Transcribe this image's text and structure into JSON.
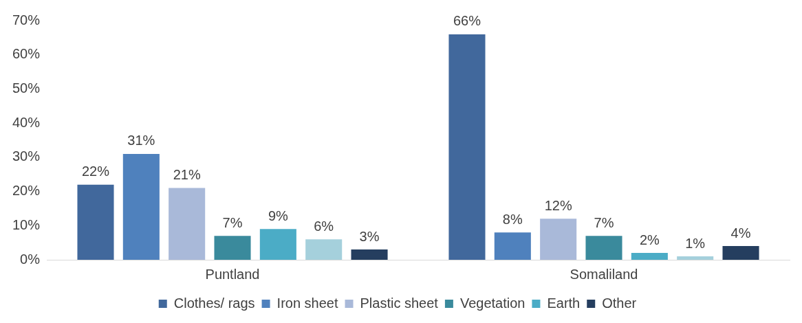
{
  "chart_data": {
    "type": "bar",
    "categories": [
      "Puntland",
      "Somaliland"
    ],
    "series": [
      {
        "name": "Clothes/ rags",
        "color": "#41689c",
        "values": [
          22,
          66
        ],
        "value_labels": [
          "22%",
          "66%"
        ]
      },
      {
        "name": "Iron sheet",
        "color": "#4f81bd",
        "values": [
          31,
          8
        ],
        "value_labels": [
          "31%",
          "8%"
        ]
      },
      {
        "name": "Plastic sheet",
        "color": "#a9b9d9",
        "values": [
          21,
          12
        ],
        "value_labels": [
          "21%",
          "12%"
        ]
      },
      {
        "name": "Vegetation",
        "color": "#3a8a9c",
        "values": [
          7,
          7
        ],
        "value_labels": [
          "7%",
          "7%"
        ]
      },
      {
        "name": "Earth",
        "color": "#4bacc6",
        "values": [
          9,
          2
        ],
        "value_labels": [
          "9%",
          "2%"
        ]
      },
      {
        "color": "#a5d0dc",
        "values": [
          6,
          1
        ],
        "value_labels": [
          "6%",
          "1%"
        ]
      },
      {
        "name": "Other",
        "color": "#253e5f",
        "values": [
          3,
          4
        ],
        "value_labels": [
          "3%",
          "4%"
        ]
      }
    ],
    "ylim": [
      0,
      70
    ],
    "yticks": [
      {
        "value": 0,
        "label": "0%"
      },
      {
        "value": 10,
        "label": "10%"
      },
      {
        "value": 20,
        "label": "20%"
      },
      {
        "value": 30,
        "label": "30%"
      },
      {
        "value": 40,
        "label": "40%"
      },
      {
        "value": 50,
        "label": "50%"
      },
      {
        "value": 60,
        "label": "60%"
      },
      {
        "value": 70,
        "label": "70%"
      }
    ],
    "grid": false,
    "legend": "bottom"
  }
}
